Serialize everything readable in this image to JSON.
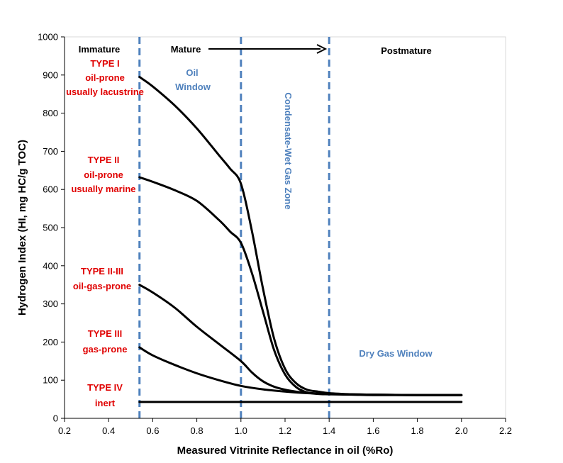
{
  "chart_data": {
    "type": "line",
    "xlabel": "Measured Vitrinite Reflectance in oil (%Ro)",
    "ylabel": "Hydrogen Index (HI, mg HC/g TOC)",
    "xlim": [
      0.2,
      2.2
    ],
    "ylim": [
      0,
      1000
    ],
    "xticks": [
      "0.2",
      "0.4",
      "0.6",
      "0.8",
      "1.0",
      "1.2",
      "1.4",
      "1.6",
      "1.8",
      "2.0",
      "2.2"
    ],
    "yticks": [
      "0",
      "100",
      "200",
      "300",
      "400",
      "500",
      "600",
      "700",
      "800",
      "900",
      "1000"
    ],
    "grid": false,
    "boundaries": [
      0.54,
      1.0,
      1.4
    ],
    "series": [
      {
        "x": [
          0.54,
          0.6,
          0.7,
          0.8,
          0.9,
          0.95,
          1.0,
          1.05,
          1.1,
          1.15,
          1.2,
          1.25,
          1.3,
          1.35,
          1.4,
          1.5,
          1.6,
          1.8,
          2.0
        ],
        "y": [
          895,
          870,
          820,
          760,
          690,
          655,
          615,
          490,
          340,
          210,
          130,
          92,
          75,
          70,
          66,
          63,
          62,
          61,
          61
        ]
      },
      {
        "x": [
          0.54,
          0.6,
          0.7,
          0.8,
          0.9,
          0.95,
          1.0,
          1.05,
          1.1,
          1.15,
          1.2,
          1.25,
          1.3,
          1.35,
          1.4,
          1.5,
          1.6,
          1.8,
          2.0
        ],
        "y": [
          632,
          620,
          598,
          570,
          520,
          490,
          460,
          380,
          280,
          180,
          115,
          82,
          68,
          64,
          63,
          62,
          61,
          61,
          61
        ]
      },
      {
        "x": [
          0.54,
          0.6,
          0.7,
          0.8,
          0.9,
          1.0,
          1.05,
          1.1,
          1.15,
          1.2,
          1.25,
          1.3,
          1.35,
          1.4,
          1.6,
          1.8,
          2.0
        ],
        "y": [
          350,
          330,
          290,
          240,
          195,
          150,
          120,
          97,
          83,
          75,
          70,
          67,
          65,
          64,
          62,
          61,
          61
        ]
      },
      {
        "x": [
          0.54,
          0.6,
          0.7,
          0.8,
          0.9,
          1.0,
          1.1,
          1.2,
          1.3,
          1.4,
          1.6,
          1.8,
          2.0
        ],
        "y": [
          186,
          165,
          140,
          118,
          100,
          85,
          76,
          70,
          66,
          64,
          62,
          61,
          61
        ]
      },
      {
        "x": [
          0.54,
          2.0
        ],
        "y": [
          43,
          43
        ]
      }
    ],
    "zone_labels": {
      "immature": "Immature",
      "mature": "Mature",
      "postmature": "Postmature",
      "oil_window_1": "Oil",
      "oil_window_2": "Window",
      "condensate": "Condensate-Wet Gas Zone",
      "dry_gas": "Dry Gas Window"
    },
    "type_labels": [
      {
        "lines": [
          "TYPE I",
          "oil-prone",
          "usually lacustrine"
        ]
      },
      {
        "lines": [
          "TYPE II",
          "oil-prone",
          "usually marine"
        ]
      },
      {
        "lines": [
          "TYPE II-III",
          "oil-gas-prone"
        ]
      },
      {
        "lines": [
          "TYPE III",
          "gas-prone"
        ]
      },
      {
        "lines": [
          "TYPE IV",
          "inert"
        ]
      }
    ]
  }
}
